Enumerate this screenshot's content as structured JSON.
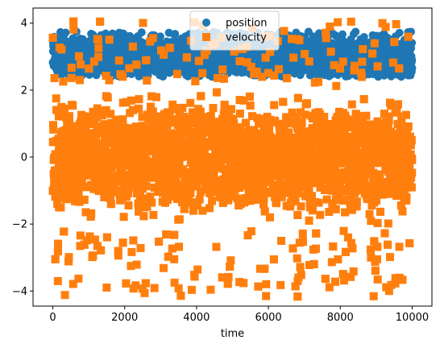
{
  "chart_data": {
    "type": "scatter",
    "title": "",
    "xlabel": "time",
    "ylabel": "",
    "xlim": [
      -550,
      10550
    ],
    "ylim": [
      -4.45,
      4.45
    ],
    "x_ticks": [
      0,
      2000,
      4000,
      6000,
      8000,
      10000
    ],
    "x_tick_labels": [
      "0",
      "2000",
      "4000",
      "6000",
      "8000",
      "10000"
    ],
    "y_ticks": [
      -4,
      -2,
      0,
      2,
      4
    ],
    "y_tick_labels": [
      "−4",
      "−2",
      "0",
      "2",
      "4"
    ],
    "grid": false,
    "legend_position": "top-center",
    "series": [
      {
        "name": "position",
        "marker": "circle",
        "color": "#1f77b4",
        "x_range": [
          0,
          10000
        ],
        "y_band": [
          2.55,
          3.45
        ],
        "y_extremes": [
          2.4,
          3.75
        ]
      },
      {
        "name": "velocity",
        "marker": "square",
        "color": "#ff7f0e",
        "x_range": [
          0,
          10000
        ],
        "y_band": [
          -2.2,
          2.2
        ],
        "y_extremes": [
          -4.2,
          4.1
        ]
      }
    ]
  }
}
